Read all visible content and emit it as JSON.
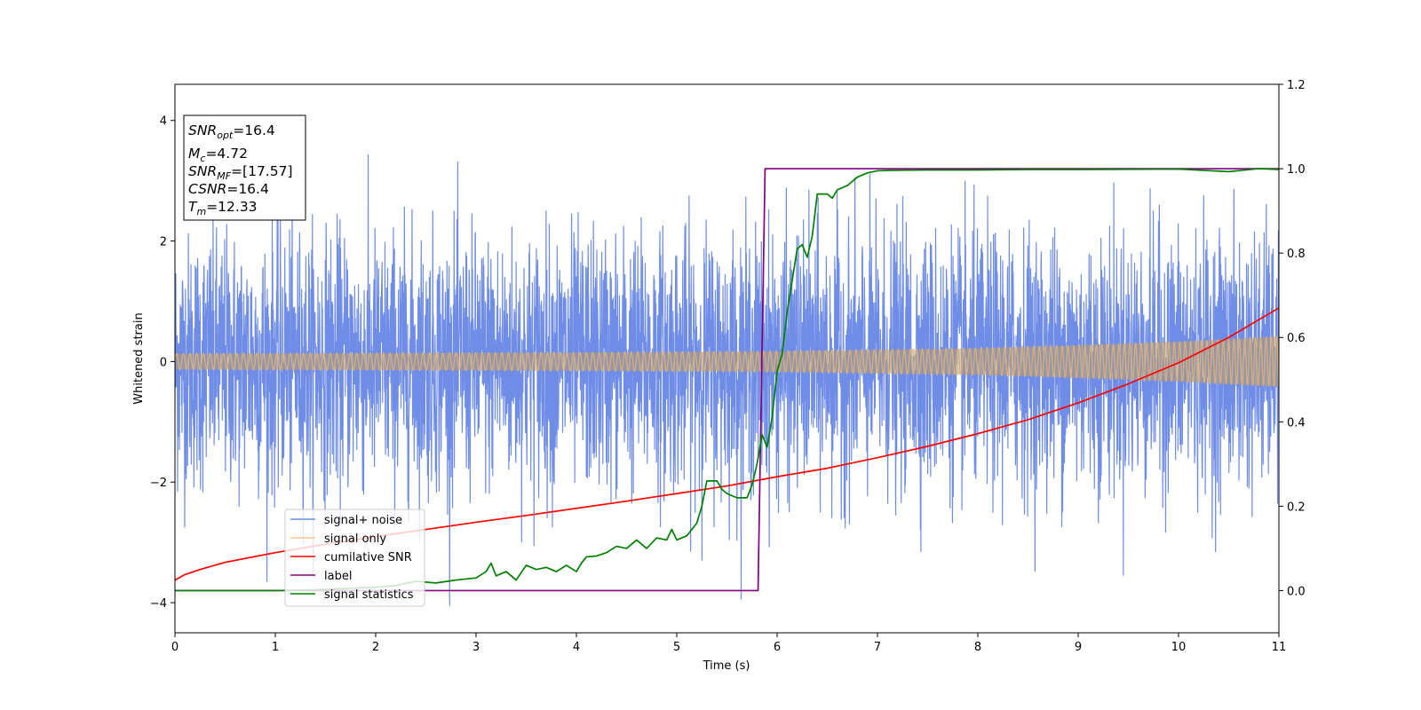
{
  "chart_data": {
    "type": "line",
    "title": "",
    "xlabel": "Time (s)",
    "ylabel": "Whitened strain",
    "y2label": "",
    "xlim": [
      0,
      11
    ],
    "ylim": [
      -4.5,
      4.6
    ],
    "y2lim": [
      -0.1,
      1.2
    ],
    "xticks": [
      "0",
      "1",
      "2",
      "3",
      "4",
      "5",
      "6",
      "7",
      "8",
      "9",
      "10",
      "11"
    ],
    "yticks": [
      "−4",
      "−2",
      "0",
      "2",
      "4"
    ],
    "y2ticks": [
      "0.0",
      "0.2",
      "0.4",
      "0.6",
      "0.8",
      "1.0",
      "1.2"
    ],
    "legend": {
      "placement": "lower-left",
      "entries": [
        "signal+ noise",
        "signal only",
        "cumilative SNR",
        "label",
        "signal statistics"
      ]
    },
    "annotation_box": {
      "snr_opt_base": "SNR",
      "snr_opt_sub": "opt",
      "snr_opt_value": "=16.4",
      "mc_base": "M",
      "mc_sub": "c",
      "mc_value": "=4.72",
      "snr_mf_base": "SNR",
      "snr_mf_sub": "MF",
      "snr_mf_value": "=[17.57]",
      "csnr_base": "CSNR",
      "csnr_value": "=16.4",
      "tm_base": "T",
      "tm_sub": "m",
      "tm_value": "=12.33"
    },
    "colors": {
      "noise": "#6f8de6",
      "signal": "#f5c98a",
      "signal_overlap": "#bc9c72",
      "csnr": "#ff0000",
      "label": "#800080",
      "stats": "#008000"
    },
    "series": [
      {
        "name": "signal+ noise",
        "axis": "left",
        "kind": "noise",
        "amplitude_std": 1.0,
        "approx_range": [
          -4.05,
          3.95
        ],
        "x_range": [
          0,
          11
        ]
      },
      {
        "name": "signal only",
        "axis": "left",
        "kind": "chirp",
        "envelope": {
          "x": [
            0,
            2,
            4,
            6,
            8,
            9,
            10,
            11
          ],
          "amp": [
            0.13,
            0.14,
            0.15,
            0.17,
            0.22,
            0.27,
            0.33,
            0.42
          ]
        }
      },
      {
        "name": "cumilative SNR",
        "axis": "right",
        "x": [
          0,
          0.1,
          0.25,
          0.5,
          1,
          1.5,
          2,
          2.5,
          3,
          3.5,
          4,
          4.5,
          5,
          5.5,
          6,
          6.5,
          7,
          7.5,
          8,
          8.5,
          9,
          9.5,
          10,
          10.5,
          11
        ],
        "y": [
          0.025,
          0.038,
          0.05,
          0.067,
          0.09,
          0.11,
          0.128,
          0.145,
          0.162,
          0.178,
          0.195,
          0.212,
          0.23,
          0.248,
          0.27,
          0.29,
          0.315,
          0.342,
          0.372,
          0.405,
          0.445,
          0.49,
          0.54,
          0.6,
          0.67
        ]
      },
      {
        "name": "label",
        "axis": "right",
        "x": [
          0,
          5.81,
          5.88,
          11
        ],
        "y": [
          0.0,
          0.0,
          1.0,
          1.0
        ]
      },
      {
        "name": "signal statistics",
        "axis": "right",
        "x": [
          0,
          0.5,
          1,
          1.5,
          2,
          2.2,
          2.4,
          2.6,
          2.8,
          3.0,
          3.1,
          3.15,
          3.2,
          3.3,
          3.4,
          3.5,
          3.6,
          3.7,
          3.8,
          3.9,
          4.0,
          4.05,
          4.1,
          4.2,
          4.3,
          4.4,
          4.5,
          4.6,
          4.7,
          4.8,
          4.9,
          4.95,
          5.0,
          5.1,
          5.2,
          5.25,
          5.3,
          5.4,
          5.45,
          5.5,
          5.6,
          5.7,
          5.75,
          5.8,
          5.85,
          5.9,
          5.95,
          6.0,
          6.05,
          6.1,
          6.2,
          6.25,
          6.3,
          6.35,
          6.4,
          6.5,
          6.55,
          6.6,
          6.7,
          6.8,
          6.9,
          7.0,
          7.1,
          7.5,
          8.0,
          8.5,
          9.0,
          10.0,
          10.5,
          10.8,
          11.0
        ],
        "y": [
          0.0,
          0.0,
          0.0,
          0.003,
          0.008,
          0.012,
          0.022,
          0.018,
          0.025,
          0.03,
          0.045,
          0.065,
          0.035,
          0.045,
          0.025,
          0.06,
          0.05,
          0.055,
          0.045,
          0.06,
          0.045,
          0.065,
          0.08,
          0.082,
          0.09,
          0.105,
          0.1,
          0.12,
          0.1,
          0.125,
          0.12,
          0.145,
          0.12,
          0.13,
          0.16,
          0.2,
          0.26,
          0.26,
          0.24,
          0.23,
          0.22,
          0.22,
          0.25,
          0.3,
          0.37,
          0.34,
          0.41,
          0.52,
          0.56,
          0.66,
          0.81,
          0.82,
          0.79,
          0.84,
          0.94,
          0.94,
          0.93,
          0.95,
          0.96,
          0.98,
          0.99,
          0.995,
          0.996,
          0.997,
          0.997,
          0.998,
          0.998,
          0.999,
          0.993,
          1.0,
          0.998
        ]
      }
    ]
  }
}
